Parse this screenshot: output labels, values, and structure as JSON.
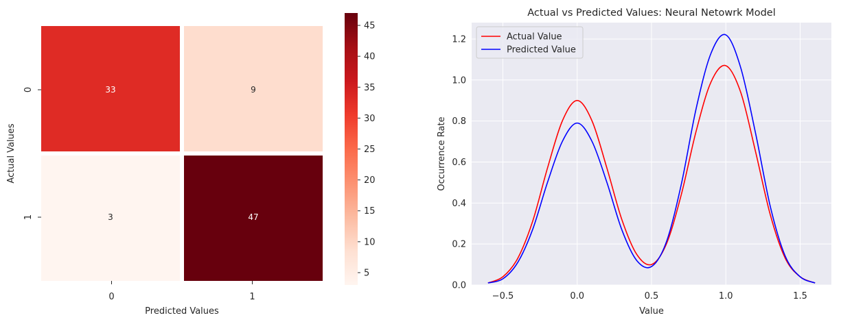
{
  "chart_data": [
    {
      "type": "heatmap",
      "title": "",
      "xlabel": "Predicted Values",
      "ylabel": "Actual Values",
      "x_categories": [
        "0",
        "1"
      ],
      "y_categories": [
        "0",
        "1"
      ],
      "values": [
        [
          33,
          9
        ],
        [
          3,
          47
        ]
      ],
      "colormap": "Reds",
      "colorbar": {
        "min": 3,
        "max": 47,
        "ticks": [
          5,
          10,
          15,
          20,
          25,
          30,
          35,
          40,
          45
        ],
        "tick_labels": [
          "5",
          "10",
          "15",
          "20",
          "25",
          "30",
          "35",
          "40",
          "45"
        ]
      },
      "colors": {
        "low": "#fff5f0",
        "high": "#67000d",
        "annotation_dark_bg": "#ffffff",
        "annotation_light_bg": "#262626"
      }
    },
    {
      "type": "line",
      "title": "Actual vs Predicted Values: Neural Netowrk Model",
      "xlabel": "Value",
      "ylabel": "Occurrence Rate",
      "xlim": [
        -0.71,
        1.71
      ],
      "ylim": [
        0,
        1.28
      ],
      "x_ticks": [
        -0.5,
        0.0,
        0.5,
        1.0,
        1.5
      ],
      "x_tick_labels": [
        "−0.5",
        "0.0",
        "0.5",
        "1.0",
        "1.5"
      ],
      "y_ticks": [
        0.0,
        0.2,
        0.4,
        0.6,
        0.8,
        1.0,
        1.2
      ],
      "y_tick_labels": [
        "0.0",
        "0.2",
        "0.4",
        "0.6",
        "0.8",
        "1.0",
        "1.2"
      ],
      "grid": true,
      "legend_position": "top-left",
      "background": "#eaeaf2",
      "x": [
        -0.6,
        -0.5,
        -0.4,
        -0.3,
        -0.2,
        -0.1,
        0.0,
        0.1,
        0.2,
        0.3,
        0.4,
        0.5,
        0.6,
        0.7,
        0.8,
        0.9,
        1.0,
        1.1,
        1.2,
        1.3,
        1.4,
        1.5,
        1.6
      ],
      "series": [
        {
          "name": "Actual Value",
          "color": "#ff0000",
          "values": [
            0.01,
            0.04,
            0.13,
            0.31,
            0.57,
            0.8,
            0.9,
            0.8,
            0.57,
            0.32,
            0.15,
            0.1,
            0.2,
            0.44,
            0.75,
            0.99,
            1.07,
            0.94,
            0.65,
            0.34,
            0.13,
            0.04,
            0.01
          ]
        },
        {
          "name": "Predicted Value",
          "color": "#0000ff",
          "values": [
            0.01,
            0.03,
            0.11,
            0.27,
            0.5,
            0.7,
            0.79,
            0.7,
            0.5,
            0.27,
            0.12,
            0.09,
            0.21,
            0.49,
            0.86,
            1.13,
            1.22,
            1.06,
            0.74,
            0.38,
            0.14,
            0.04,
            0.01
          ]
        }
      ]
    }
  ]
}
